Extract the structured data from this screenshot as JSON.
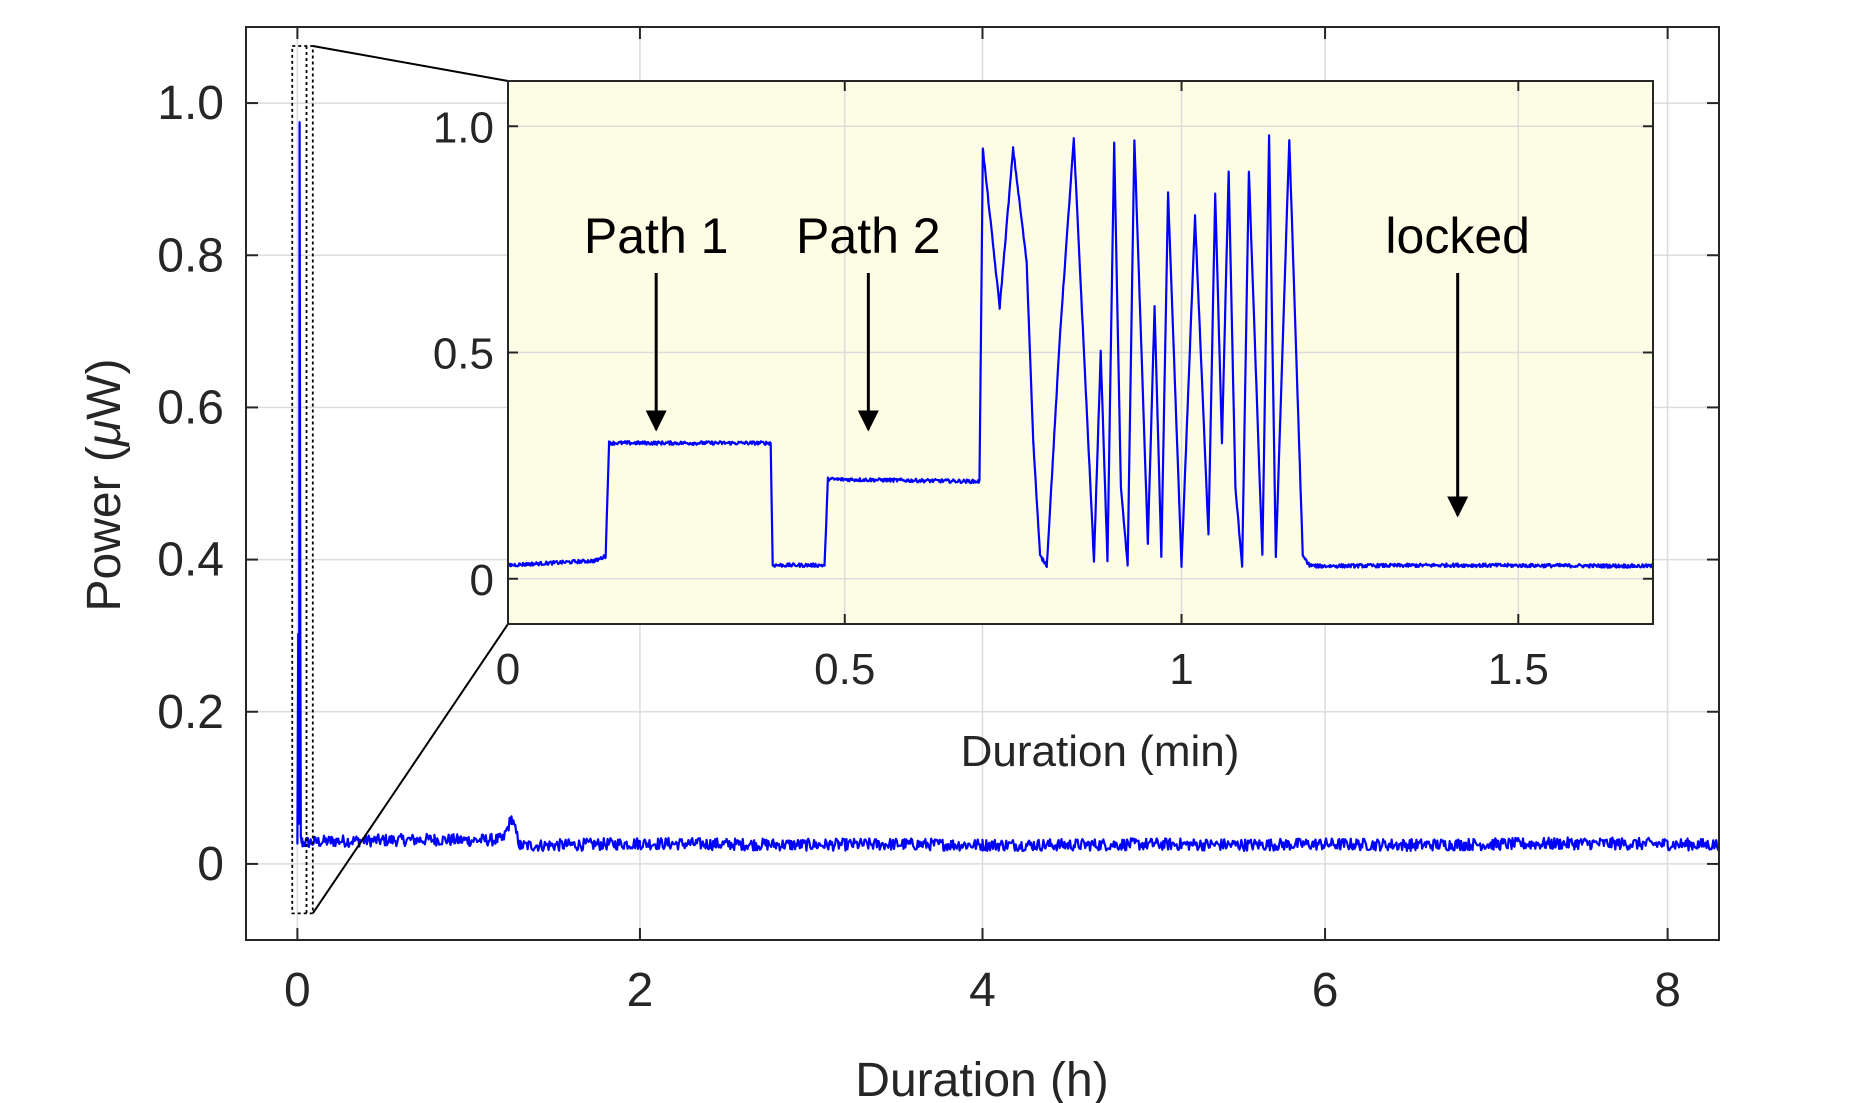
{
  "chart_data": [
    {
      "type": "line",
      "role": "main",
      "xlabel": "Duration (h)",
      "ylabel_prefix": "Power (",
      "ylabel_mu": "μ",
      "ylabel_suffix": "W)",
      "xlim": [
        -0.3,
        8.3
      ],
      "ylim": [
        -0.1,
        1.1
      ],
      "x_ticks": [
        0,
        2,
        4,
        6,
        8
      ],
      "x_tick_labels": [
        "0",
        "2",
        "4",
        "6",
        "8"
      ],
      "y_ticks": [
        0,
        0.2,
        0.4,
        0.6,
        0.8,
        1.0
      ],
      "y_tick_labels": [
        "0",
        "0.2",
        "0.4",
        "0.6",
        "0.8",
        "1.0"
      ],
      "grid": true,
      "line_color": "#0000ff",
      "zoom_box": {
        "x": [
          -0.03,
          0.09
        ],
        "y": [
          -0.065,
          1.075
        ]
      },
      "series": [
        {
          "x": [
            0,
            0.005,
            0.01,
            0.013,
            0.017,
            0.02,
            0.025,
            0.03,
            0.2,
            0.5,
            0.8,
            1.0,
            1.2,
            1.25,
            1.3,
            1.6,
            2.0,
            2.5,
            3.0,
            3.5,
            4.0,
            4.5,
            5.0,
            5.5,
            6.0,
            6.5,
            7.0,
            7.5,
            8.0,
            8.3
          ],
          "y": [
            0.03,
            0.3,
            0.05,
            0.98,
            0.3,
            0.03,
            0.03,
            0.028,
            0.03,
            0.031,
            0.032,
            0.031,
            0.032,
            0.06,
            0.024,
            0.025,
            0.027,
            0.026,
            0.025,
            0.026,
            0.025,
            0.025,
            0.026,
            0.025,
            0.026,
            0.025,
            0.026,
            0.027,
            0.026,
            0.025
          ],
          "noise_amplitude": 0.008
        }
      ]
    },
    {
      "type": "line",
      "role": "inset",
      "xlabel": "Duration (min)",
      "xlim": [
        0,
        1.7
      ],
      "ylim": [
        -0.1,
        1.1
      ],
      "x_ticks": [
        0,
        0.5,
        1,
        1.5
      ],
      "x_tick_labels": [
        "0",
        "0.5",
        "1",
        "1.5"
      ],
      "y_ticks": [
        0,
        0.5,
        1.0
      ],
      "y_tick_labels": [
        "0",
        "0.5",
        "1.0"
      ],
      "grid": true,
      "background": "#fdfde6",
      "line_color": "#0000ff",
      "series": [
        {
          "x": [
            0,
            0.13,
            0.145,
            0.15,
            0.155,
            0.39,
            0.393,
            0.47,
            0.475,
            0.7,
            0.705,
            0.73,
            0.75,
            0.77,
            0.78,
            0.79,
            0.8,
            0.82,
            0.84,
            0.86,
            0.87,
            0.88,
            0.89,
            0.9,
            0.91,
            0.92,
            0.93,
            0.95,
            0.96,
            0.97,
            0.98,
            1.0,
            1.02,
            1.04,
            1.05,
            1.06,
            1.07,
            1.08,
            1.09,
            1.1,
            1.12,
            1.13,
            1.14,
            1.16,
            1.18,
            1.19,
            1.2,
            1.4,
            1.7
          ],
          "y": [
            0.03,
            0.04,
            0.05,
            0.3,
            0.3,
            0.3,
            0.03,
            0.03,
            0.22,
            0.215,
            0.95,
            0.6,
            0.95,
            0.7,
            0.3,
            0.05,
            0.03,
            0.55,
            0.97,
            0.35,
            0.04,
            0.5,
            0.04,
            0.96,
            0.2,
            0.03,
            0.97,
            0.08,
            0.6,
            0.05,
            0.85,
            0.03,
            0.8,
            0.1,
            0.85,
            0.3,
            0.9,
            0.2,
            0.03,
            0.9,
            0.05,
            0.98,
            0.05,
            0.97,
            0.05,
            0.03,
            0.028,
            0.03,
            0.028
          ],
          "noise_amplitude": 0.004
        }
      ],
      "annotations": [
        {
          "text": "Path 1",
          "x": 0.22,
          "y": 0.72,
          "arrow_to": [
            0.22,
            0.33
          ]
        },
        {
          "text": "Path 2",
          "x": 0.535,
          "y": 0.72,
          "arrow_to": [
            0.535,
            0.33
          ]
        },
        {
          "text": "locked",
          "x": 1.41,
          "y": 0.72,
          "arrow_to": [
            1.41,
            0.14
          ]
        }
      ]
    }
  ]
}
